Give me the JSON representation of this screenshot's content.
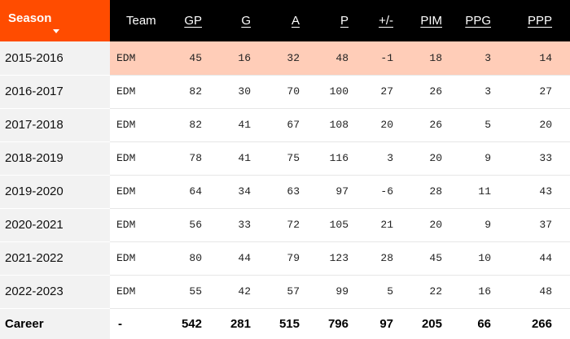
{
  "columns": {
    "season": "Season",
    "team": "Team",
    "gp": "GP",
    "g": "G",
    "a": "A",
    "p": "P",
    "plus_minus": "+/-",
    "pim": "PIM",
    "ppg": "PPG",
    "ppp": "PPP"
  },
  "rows": [
    {
      "season": "2015-2016",
      "team": "EDM",
      "gp": "45",
      "g": "16",
      "a": "32",
      "p": "48",
      "plus_minus": "-1",
      "pim": "18",
      "ppg": "3",
      "ppp": "14"
    },
    {
      "season": "2016-2017",
      "team": "EDM",
      "gp": "82",
      "g": "30",
      "a": "70",
      "p": "100",
      "plus_minus": "27",
      "pim": "26",
      "ppg": "3",
      "ppp": "27"
    },
    {
      "season": "2017-2018",
      "team": "EDM",
      "gp": "82",
      "g": "41",
      "a": "67",
      "p": "108",
      "plus_minus": "20",
      "pim": "26",
      "ppg": "5",
      "ppp": "20"
    },
    {
      "season": "2018-2019",
      "team": "EDM",
      "gp": "78",
      "g": "41",
      "a": "75",
      "p": "116",
      "plus_minus": "3",
      "pim": "20",
      "ppg": "9",
      "ppp": "33"
    },
    {
      "season": "2019-2020",
      "team": "EDM",
      "gp": "64",
      "g": "34",
      "a": "63",
      "p": "97",
      "plus_minus": "-6",
      "pim": "28",
      "ppg": "11",
      "ppp": "43"
    },
    {
      "season": "2020-2021",
      "team": "EDM",
      "gp": "56",
      "g": "33",
      "a": "72",
      "p": "105",
      "plus_minus": "21",
      "pim": "20",
      "ppg": "9",
      "ppp": "37"
    },
    {
      "season": "2021-2022",
      "team": "EDM",
      "gp": "80",
      "g": "44",
      "a": "79",
      "p": "123",
      "plus_minus": "28",
      "pim": "45",
      "ppg": "10",
      "ppp": "44"
    },
    {
      "season": "2022-2023",
      "team": "EDM",
      "gp": "55",
      "g": "42",
      "a": "57",
      "p": "99",
      "plus_minus": "5",
      "pim": "22",
      "ppg": "16",
      "ppp": "48"
    }
  ],
  "career": {
    "season": "Career",
    "team": "-",
    "gp": "542",
    "g": "281",
    "a": "515",
    "p": "796",
    "plus_minus": "97",
    "pim": "205",
    "ppg": "66",
    "ppp": "266"
  },
  "highlighted_row": 0,
  "sorted_column": "season",
  "sort_direction": "descending",
  "colors": {
    "accent": "#ff4c00",
    "header_bg": "#000000",
    "highlight": "#ffcdb8"
  },
  "icons": {
    "sort": "sort-down-icon"
  }
}
